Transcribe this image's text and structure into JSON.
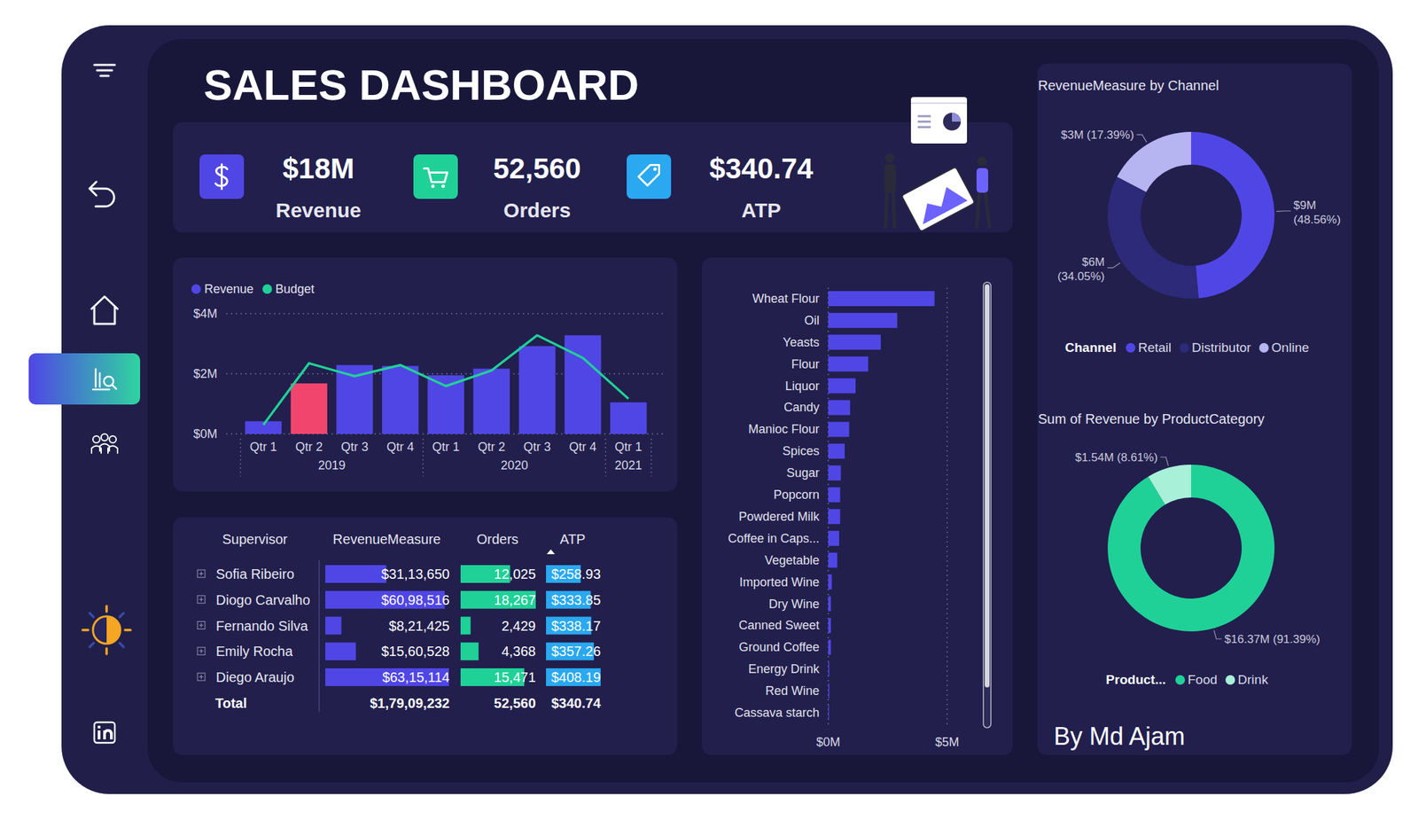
{
  "title": "SALES DASHBOARD",
  "kpis": [
    {
      "value": "$18M",
      "label": "Revenue"
    },
    {
      "value": "52,560",
      "label": "Orders"
    },
    {
      "value": "$340.74",
      "label": "ATP"
    }
  ],
  "chart_data": [
    {
      "type": "bar",
      "legend": "top-left",
      "grid": true,
      "categories": [
        "Qtr 1",
        "Qtr 2",
        "Qtr 3",
        "Qtr 4",
        "Qtr 1",
        "Qtr 2",
        "Qtr 3",
        "Qtr 4",
        "Qtr 1"
      ],
      "groups": [
        {
          "label": "2019",
          "span": 4
        },
        {
          "label": "2020",
          "span": 4
        },
        {
          "label": "2021",
          "span": 1
        }
      ],
      "series": [
        {
          "name": "Revenue",
          "type": "bar",
          "color": "#5046e5",
          "colors": [
            "#5046e5",
            "#f2456e",
            "#5046e5",
            "#5046e5",
            "#5046e5",
            "#5046e5",
            "#5046e5",
            "#5046e5",
            "#5046e5"
          ],
          "values": [
            0.42,
            1.68,
            2.29,
            2.26,
            1.95,
            2.17,
            2.92,
            3.28,
            1.05
          ]
        },
        {
          "name": "Budget",
          "type": "line",
          "color": "#20d197",
          "values": [
            0.3,
            2.35,
            1.92,
            2.29,
            1.59,
            2.11,
            3.28,
            2.53,
            1.17
          ]
        }
      ],
      "ylim": [
        0,
        4
      ],
      "yticks": [
        {
          "value": 0,
          "label": "$0M"
        },
        {
          "value": 2,
          "label": "$2M"
        },
        {
          "value": 4,
          "label": "$4M"
        }
      ]
    },
    {
      "type": "bar",
      "orientation": "horizontal",
      "grid": true,
      "color": "#5046e5",
      "categories": [
        "Wheat Flour",
        "Oil",
        "Yeasts",
        "Flour",
        "Liquor",
        "Candy",
        "Manioc Flour",
        "Spices",
        "Sugar",
        "Popcorn",
        "Powdered Milk",
        "Coffee in Caps...",
        "Vegetable",
        "Imported Wine",
        "Dry Wine",
        "Canned Sweet",
        "Ground Coffee",
        "Energy Drink",
        "Red Wine",
        "Cassava starch"
      ],
      "values": [
        4.47,
        2.9,
        2.21,
        1.68,
        1.15,
        0.92,
        0.88,
        0.69,
        0.53,
        0.5,
        0.5,
        0.46,
        0.38,
        0.15,
        0.11,
        0.11,
        0.11,
        0.04,
        0.04,
        0.03
      ],
      "xlim": [
        0,
        5
      ],
      "xticks": [
        {
          "value": 0,
          "label": "$0M"
        },
        {
          "value": 5,
          "label": "$5M"
        }
      ]
    },
    {
      "type": "donut",
      "title": "RevenueMeasure by Channel",
      "legend": "bottom",
      "legend_title": "Channel",
      "data_labels": true,
      "categories": [
        "Retail",
        "Distributor",
        "Online"
      ],
      "values": [
        48.56,
        34.05,
        17.39
      ],
      "value_labels": [
        "$9M (48.56%)",
        "$6M (34.05%)",
        "$3M (17.39%)"
      ],
      "colors": [
        "#5046e5",
        "#2d2a7a",
        "#b7b4f2"
      ]
    },
    {
      "type": "donut",
      "title": "Sum of Revenue by ProductCategory",
      "legend": "bottom",
      "legend_title": "Product...",
      "data_labels": true,
      "categories": [
        "Food",
        "Drink"
      ],
      "values": [
        91.39,
        8.61
      ],
      "value_labels": [
        "$16.37M (91.39%)",
        "$1.54M (8.61%)"
      ],
      "colors": [
        "#20d197",
        "#a8f0d8"
      ]
    }
  ],
  "table": {
    "columns": [
      "Supervisor",
      "RevenueMeasure",
      "Orders",
      "ATP"
    ],
    "rows": [
      {
        "supervisor": "Sofia Ribeiro",
        "revenue": 3113650,
        "revenue_label": "$31,13,650",
        "orders": 12025,
        "orders_label": "12,025",
        "atp": 258.93,
        "atp_label": "$258.93"
      },
      {
        "supervisor": "Diogo Carvalho",
        "revenue": 6098516,
        "revenue_label": "$60,98,516",
        "orders": 18267,
        "orders_label": "18,267",
        "atp": 333.85,
        "atp_label": "$333.85"
      },
      {
        "supervisor": "Fernando Silva",
        "revenue": 821425,
        "revenue_label": "$8,21,425",
        "orders": 2429,
        "orders_label": "2,429",
        "atp": 338.17,
        "atp_label": "$338.17"
      },
      {
        "supervisor": "Emily Rocha",
        "revenue": 1560528,
        "revenue_label": "$15,60,528",
        "orders": 4368,
        "orders_label": "4,368",
        "atp": 357.26,
        "atp_label": "$357.26"
      },
      {
        "supervisor": "Diego Araujo",
        "revenue": 6315114,
        "revenue_label": "$63,15,114",
        "orders": 15471,
        "orders_label": "15,471",
        "atp": 408.19,
        "atp_label": "$408.19"
      }
    ],
    "total": {
      "supervisor": "Total",
      "revenue_label": "$1,79,09,232",
      "orders_label": "52,560",
      "atp_label": "$340.74"
    }
  },
  "footer": "By Md Ajam"
}
